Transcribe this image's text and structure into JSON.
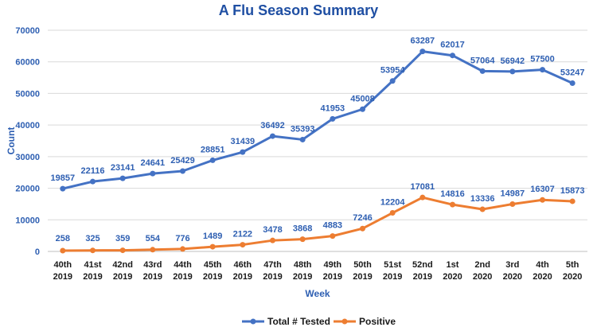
{
  "colors": {
    "title": "#1f4fa3",
    "text": "#2e5fb2",
    "grid": "#d9d9d9",
    "axis": "#bfbfbf",
    "series_tested": "#4472c4",
    "series_positive": "#ed7d31"
  },
  "chart_data": {
    "type": "line",
    "title": "A Flu Season Summary",
    "xlabel": "Week",
    "ylabel": "Count",
    "ylim": [
      0,
      70000
    ],
    "y_ticks": [
      0,
      10000,
      20000,
      30000,
      40000,
      50000,
      60000,
      70000
    ],
    "grid": true,
    "legend_position": "bottom",
    "categories": [
      {
        "week": "40th",
        "year": "2019"
      },
      {
        "week": "41st",
        "year": "2019"
      },
      {
        "week": "42nd",
        "year": "2019"
      },
      {
        "week": "43rd",
        "year": "2019"
      },
      {
        "week": "44th",
        "year": "2019"
      },
      {
        "week": "45th",
        "year": "2019"
      },
      {
        "week": "46th",
        "year": "2019"
      },
      {
        "week": "47th",
        "year": "2019"
      },
      {
        "week": "48th",
        "year": "2019"
      },
      {
        "week": "49th",
        "year": "2019"
      },
      {
        "week": "50th",
        "year": "2019"
      },
      {
        "week": "51st",
        "year": "2019"
      },
      {
        "week": "52nd",
        "year": "2019"
      },
      {
        "week": "1st",
        "year": "2020"
      },
      {
        "week": "2nd",
        "year": "2020"
      },
      {
        "week": "3rd",
        "year": "2020"
      },
      {
        "week": "4th",
        "year": "2020"
      },
      {
        "week": "5th",
        "year": "2020"
      }
    ],
    "series": [
      {
        "name": "Total # Tested",
        "key": "tested",
        "values": [
          19857,
          22116,
          23141,
          24641,
          25429,
          28851,
          31439,
          36492,
          35393,
          41953,
          45008,
          53954,
          63287,
          62017,
          57064,
          56942,
          57500,
          53247
        ]
      },
      {
        "name": "Positive",
        "key": "positive",
        "values": [
          258,
          325,
          359,
          554,
          776,
          1489,
          2122,
          3478,
          3868,
          4883,
          7246,
          12204,
          17081,
          14816,
          13336,
          14987,
          16307,
          15873
        ]
      }
    ]
  }
}
